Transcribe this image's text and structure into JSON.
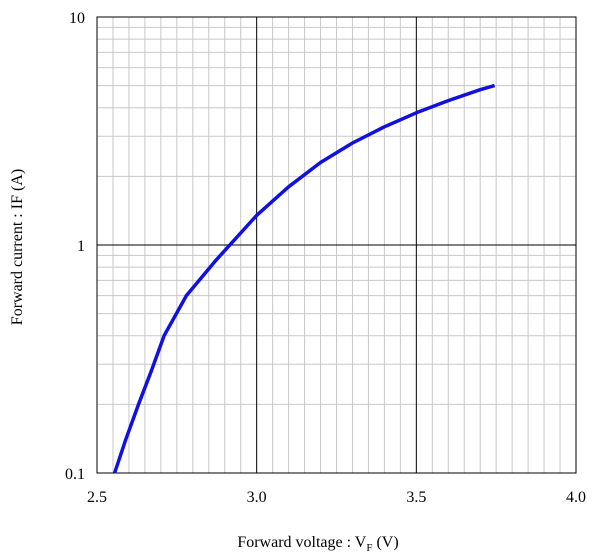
{
  "chart_data": {
    "type": "line",
    "title": "",
    "xlabel": "Forward voltage : V",
    "xlabel_sub": "F",
    "xlabel_unit": " (V)",
    "ylabel": "Forward current : IF (A)",
    "xlim": [
      2.5,
      4.0
    ],
    "ylim": [
      0.1,
      10
    ],
    "y_scale": "log",
    "grid": true,
    "x_ticks": [
      "2.5",
      "3.0",
      "3.5",
      "4.0"
    ],
    "y_ticks": [
      "0.1",
      "1",
      "10"
    ],
    "series": [
      {
        "color": "#1010e0",
        "x": [
          2.555,
          2.59,
          2.63,
          2.67,
          2.71,
          2.78,
          2.87,
          3.0,
          3.1,
          3.2,
          3.3,
          3.4,
          3.5,
          3.6,
          3.7,
          3.745
        ],
        "y": [
          0.1,
          0.14,
          0.2,
          0.28,
          0.4,
          0.6,
          0.85,
          1.35,
          1.8,
          2.3,
          2.8,
          3.3,
          3.8,
          4.3,
          4.8,
          5.0
        ]
      }
    ]
  }
}
